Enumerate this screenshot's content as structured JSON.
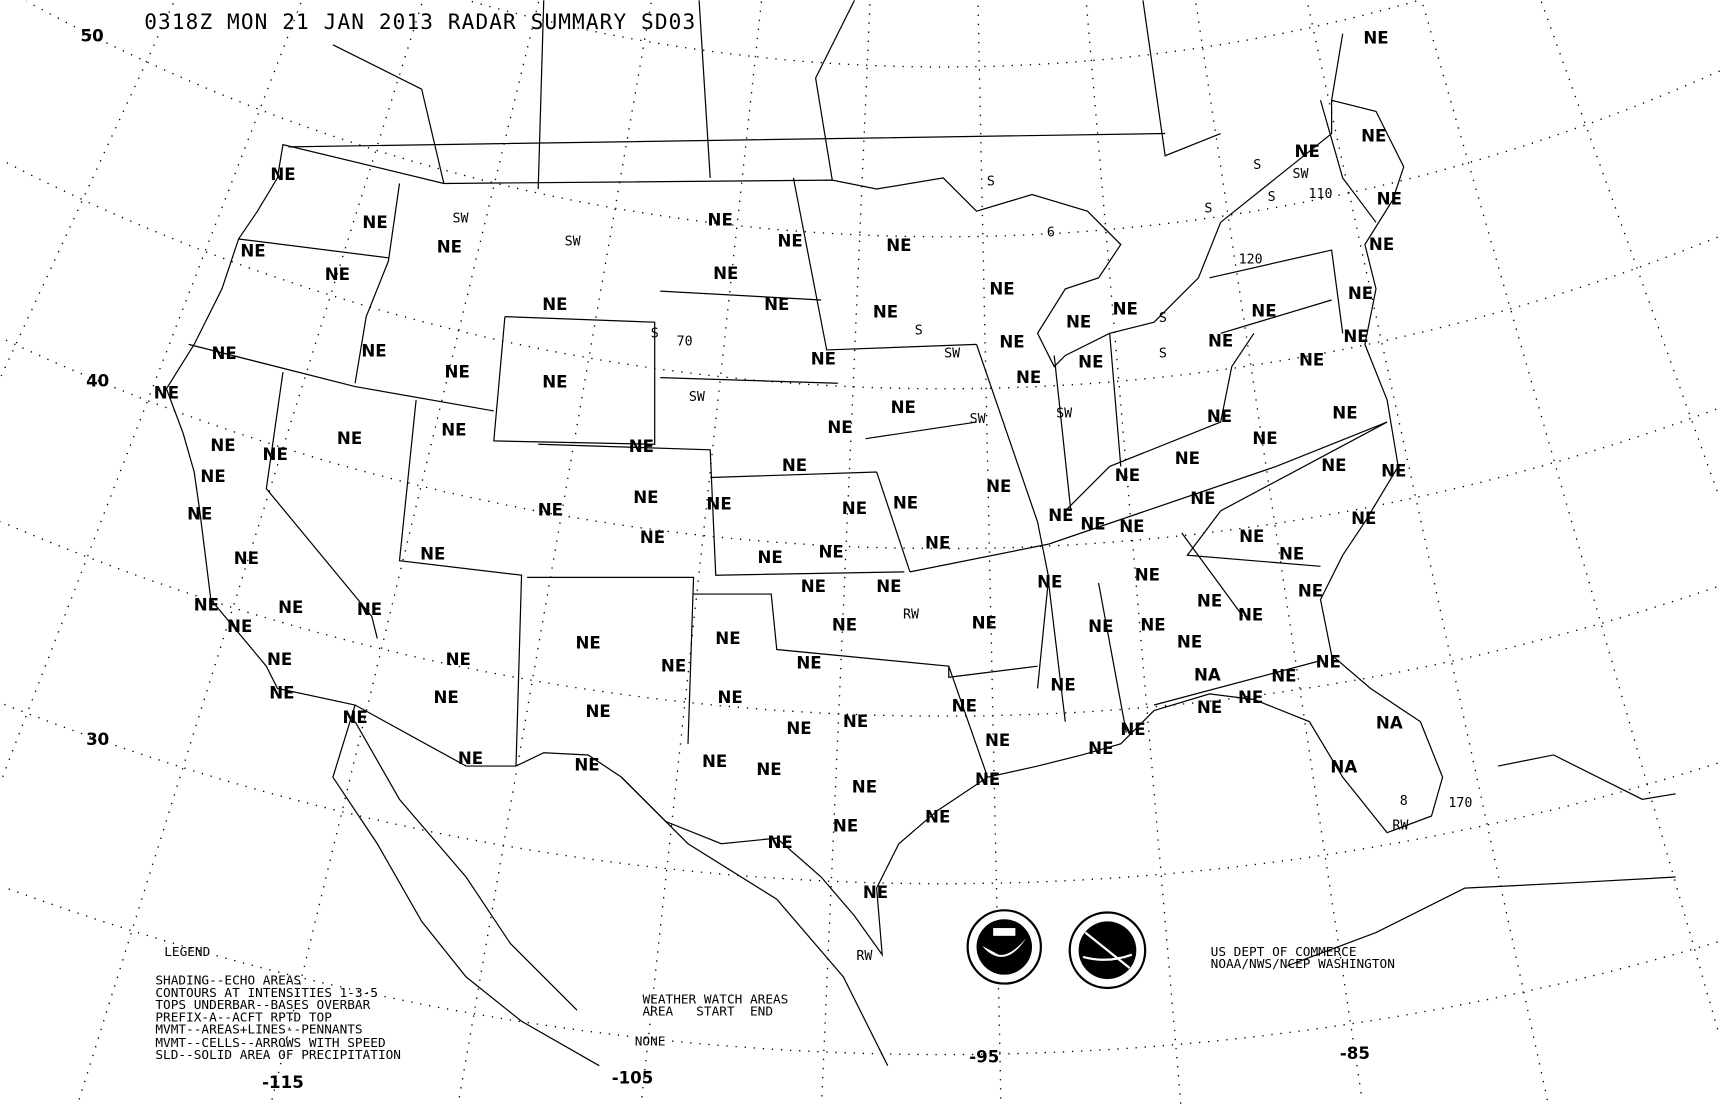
{
  "header": {
    "title": "0318Z MON 21 JAN 2013 RADAR SUMMARY SD03"
  },
  "axes": {
    "latitude_labels": [
      "50",
      "40",
      "30"
    ],
    "longitude_labels": [
      "-115",
      "-105",
      "-95",
      "-85"
    ]
  },
  "legend": {
    "title": "LEGEND",
    "lines": [
      "SHADING--ECHO AREAS",
      "CONTOURS AT INTENSITIES 1-3-5",
      "TOPS UNDERBAR--BASES OVERBAR",
      "PREFIX-A--ACFT RPTD TOP",
      "MVMT--AREAS+LINES--PENNANTS",
      "MVMT--CELLS--ARROWS WITH SPEED",
      "SLD--SOLID AREA OF PRECIPITATION"
    ]
  },
  "watch": {
    "title": "WEATHER WATCH AREAS",
    "columns": "AREA   START  END",
    "value": "NONE"
  },
  "credits": {
    "line1": "US DEPT OF COMMERCE",
    "line2": "NOAA/NWS/NCEP WASHINGTON",
    "logos": [
      "NOAA",
      "NATIONAL WEATHER SERVICE"
    ]
  },
  "station_labels": [
    "NE",
    "NE",
    "NE",
    "NE",
    "NE",
    "NE",
    "NE",
    "NE",
    "NE",
    "NE",
    "NE",
    "NE",
    "NE",
    "NE",
    "NE",
    "NE",
    "NE",
    "NE",
    "NE",
    "NE",
    "NE",
    "NE",
    "NE",
    "NE",
    "NE",
    "NE",
    "NE",
    "NE",
    "NE",
    "NE",
    "NE",
    "NE",
    "NE",
    "NE",
    "NE",
    "NE",
    "NE",
    "NE",
    "NE",
    "NE",
    "NE",
    "NE",
    "NE",
    "NE",
    "NE",
    "NE",
    "NE",
    "NE",
    "NE",
    "NE",
    "NE",
    "NE",
    "NE",
    "NE",
    "NE",
    "NE",
    "NE",
    "NE",
    "NE",
    "NE",
    "NE",
    "NE",
    "NE",
    "NE",
    "NE",
    "NE",
    "NE",
    "NE",
    "NE",
    "NE",
    "NE",
    "NE",
    "NE",
    "NE",
    "NE",
    "NE",
    "NE",
    "NE",
    "NE",
    "NE",
    "NE",
    "NE",
    "NE",
    "NE",
    "NE",
    "NE",
    "NE",
    "NE",
    "NE",
    "NE",
    "NE",
    "NE",
    "NE",
    "NE",
    "NE",
    "NE",
    "NE",
    "NE",
    "NE",
    "NE",
    "NE",
    "NE",
    "NE",
    "NE",
    "NE",
    "NE",
    "NE",
    "NE",
    "NE",
    "NE",
    "NE",
    "NE",
    "NE",
    "NE",
    "NE",
    "NE",
    "NE",
    "NE",
    "NA",
    "NA",
    "NA",
    "NA",
    "NA",
    "NA"
  ],
  "echo_labels": [
    "SW",
    "SW",
    "SW",
    "SW",
    "SW",
    "SW",
    "SW",
    "S",
    "S",
    "S",
    "S",
    "S",
    "S",
    "S",
    "S",
    "6",
    "RW",
    "RW",
    "RW",
    "70",
    "120",
    "110",
    "170",
    "8"
  ]
}
